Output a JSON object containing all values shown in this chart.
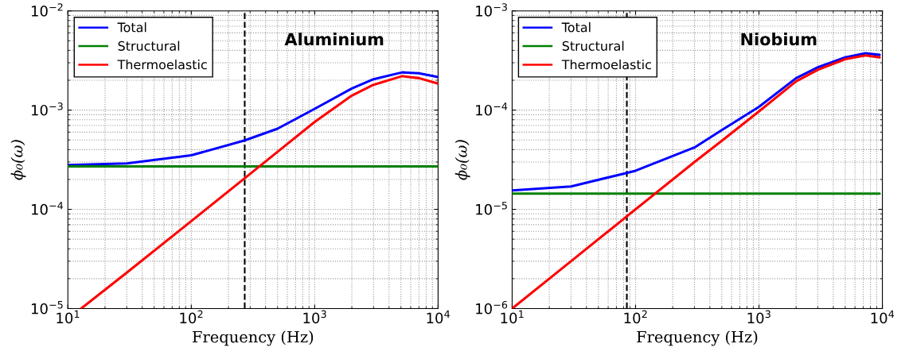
{
  "chart_data": [
    {
      "type": "line",
      "title": "Aluminium",
      "xlabel": "Frequency (Hz)",
      "ylabel": "ϕ₀(ω)",
      "log": "xy",
      "grid": true,
      "legend": "top left",
      "line_style": "solid",
      "marker": "none",
      "xlim": [
        10,
        10000
      ],
      "xticks": [
        {
          "value": 10,
          "label": "10$^{1}$"
        },
        {
          "value": 100,
          "label": "10$^{2}$"
        },
        {
          "value": 1000,
          "label": "10$^{3}$"
        },
        {
          "value": 10000,
          "label": "10$^{4}$"
        }
      ],
      "ylim": [
        1e-05,
        0.01
      ],
      "yticks": [
        {
          "value": 1e-05,
          "label": "10$^{−5}$"
        },
        {
          "value": 0.0001,
          "label": "10$^{−4}$"
        },
        {
          "value": 0.001,
          "label": "10$^{−3}$"
        },
        {
          "value": 0.01,
          "label": "10$^{−2}$"
        }
      ],
      "ref_lines": [
        {
          "axis": "x",
          "value": 271,
          "color": "#000000",
          "line_style": "dashed"
        }
      ],
      "series": [
        {
          "name": "Total",
          "color": "#0000ff",
          "x": [
            10,
            30,
            100,
            271,
            500,
            1000,
            2000,
            3000,
            5100,
            7000,
            10000
          ],
          "values": [
            0.00028,
            0.00029,
            0.00035,
            0.000495,
            0.00065,
            0.00103,
            0.00165,
            0.00205,
            0.0024,
            0.00235,
            0.00215
          ]
        },
        {
          "name": "Structural",
          "color": "#008000",
          "x": [
            10,
            10000
          ],
          "values": [
            0.000271,
            0.000271
          ]
        },
        {
          "name": "Thermoelastic",
          "color": "#ff0000",
          "x": [
            12.8,
            30,
            100,
            271,
            500,
            1000,
            2000,
            3000,
            5100,
            7000,
            10000
          ],
          "values": [
            1e-05,
            2.3e-05,
            7.6e-05,
            0.000206,
            0.00038,
            0.00076,
            0.0014,
            0.0018,
            0.0022,
            0.0021,
            0.00185
          ]
        }
      ]
    },
    {
      "type": "line",
      "title": "Niobium",
      "xlabel": "Frequency (Hz)",
      "ylabel": "ϕ₀(ω)",
      "log": "xy",
      "grid": true,
      "legend": "top left",
      "line_style": "solid",
      "marker": "none",
      "xlim": [
        10,
        10000
      ],
      "xticks": [
        {
          "value": 10,
          "label": "10$^{1}$"
        },
        {
          "value": 100,
          "label": "10$^{2}$"
        },
        {
          "value": 1000,
          "label": "10$^{3}$"
        },
        {
          "value": 10000,
          "label": "10$^{4}$"
        }
      ],
      "ylim": [
        1e-06,
        0.001
      ],
      "yticks": [
        {
          "value": 1e-06,
          "label": "10$^{−6}$"
        },
        {
          "value": 1e-05,
          "label": "10$^{−5}$"
        },
        {
          "value": 0.0001,
          "label": "10$^{−4}$"
        },
        {
          "value": 0.001,
          "label": "10$^{−3}$"
        }
      ],
      "ref_lines": [
        {
          "axis": "x",
          "value": 85,
          "color": "#000000",
          "line_style": "dashed"
        }
      ],
      "series": [
        {
          "name": "Total",
          "color": "#0000ff",
          "x": [
            10,
            30,
            85,
            100,
            300,
            500,
            1000,
            2000,
            3000,
            5000,
            7300,
            9500
          ],
          "values": [
            1.55e-05,
            1.7e-05,
            2.33e-05,
            2.45e-05,
            4.2e-05,
            6.3e-05,
            0.000108,
            0.00021,
            0.00027,
            0.00034,
            0.000375,
            0.00036
          ]
        },
        {
          "name": "Structural",
          "color": "#008000",
          "x": [
            10,
            9500
          ],
          "values": [
            1.44e-05,
            1.44e-05
          ]
        },
        {
          "name": "Thermoelastic",
          "color": "#ff0000",
          "x": [
            10,
            30,
            85,
            100,
            300,
            500,
            1000,
            2000,
            3000,
            5000,
            7300,
            9500
          ],
          "values": [
            1e-06,
            3e-06,
            8.5e-06,
            1e-05,
            3e-05,
            4.9e-05,
            9.7e-05,
            0.000195,
            0.000255,
            0.000326,
            0.000356,
            0.00034
          ]
        }
      ]
    }
  ]
}
